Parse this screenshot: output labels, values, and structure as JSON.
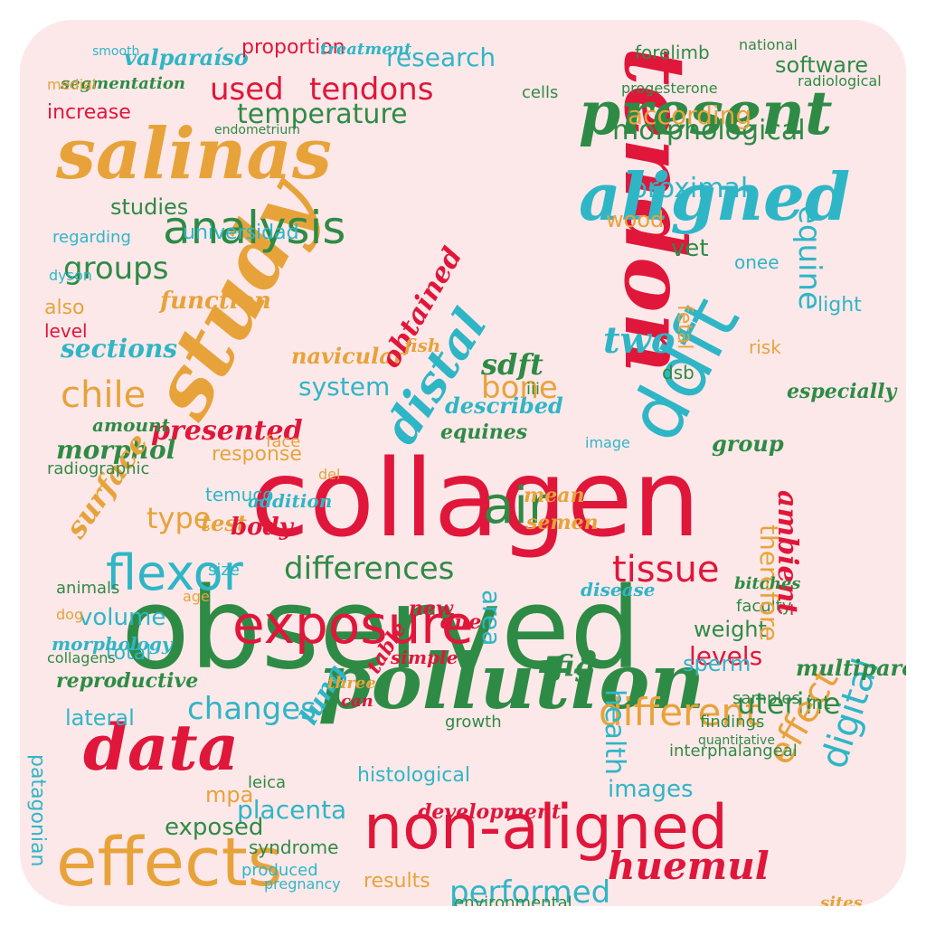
{
  "palette": {
    "background": "#fde8e9",
    "red": "#e0163a",
    "green": "#2e8b45",
    "orange": "#e7a33a",
    "cyan": "#2fb6c6"
  },
  "words": [
    {
      "text": "collagen",
      "color": "red",
      "font": "s",
      "dir": "h"
    },
    {
      "text": "observed",
      "color": "green",
      "font": "s",
      "dir": "h"
    },
    {
      "text": "tendon",
      "color": "red",
      "font": "c",
      "dir": "v"
    },
    {
      "text": "study",
      "color": "orange",
      "font": "c",
      "dir": "d"
    },
    {
      "text": "pollution",
      "color": "green",
      "font": "c",
      "dir": "h"
    },
    {
      "text": "non-aligned",
      "color": "red",
      "font": "s",
      "dir": "h"
    },
    {
      "text": "effects",
      "color": "orange",
      "font": "s",
      "dir": "h"
    },
    {
      "text": "salinas",
      "color": "orange",
      "font": "c",
      "dir": "h"
    },
    {
      "text": "present",
      "color": "green",
      "font": "c",
      "dir": "h"
    },
    {
      "text": "aligned",
      "color": "cyan",
      "font": "c",
      "dir": "h"
    },
    {
      "text": "ddft",
      "color": "cyan",
      "font": "s",
      "dir": "d"
    },
    {
      "text": "data",
      "color": "red",
      "font": "c",
      "dir": "h"
    },
    {
      "text": "distal",
      "color": "cyan",
      "font": "c",
      "dir": "d"
    },
    {
      "text": "exposure",
      "color": "red",
      "font": "s",
      "dir": "h"
    },
    {
      "text": "flexor",
      "color": "cyan",
      "font": "s",
      "dir": "h"
    },
    {
      "text": "tissue",
      "color": "red",
      "font": "s",
      "dir": "h"
    },
    {
      "text": "equine",
      "color": "cyan",
      "font": "s",
      "dir": "v"
    },
    {
      "text": "huemul",
      "color": "red",
      "font": "c",
      "dir": "h"
    },
    {
      "text": "digital",
      "color": "cyan",
      "font": "s",
      "dir": "v"
    },
    {
      "text": "different",
      "color": "orange",
      "font": "s",
      "dir": "h"
    },
    {
      "text": "analysis",
      "color": "green",
      "font": "s",
      "dir": "h"
    },
    {
      "text": "used",
      "color": "red",
      "font": "s",
      "dir": "h"
    },
    {
      "text": "tendons",
      "color": "red",
      "font": "s",
      "dir": "h"
    },
    {
      "text": "temperature",
      "color": "green",
      "font": "s",
      "dir": "h"
    },
    {
      "text": "morphological",
      "color": "green",
      "font": "s",
      "dir": "h"
    },
    {
      "text": "proximal",
      "color": "cyan",
      "font": "s",
      "dir": "h"
    },
    {
      "text": "studies",
      "color": "green",
      "font": "s",
      "dir": "h"
    },
    {
      "text": "universidad",
      "color": "cyan",
      "font": "s",
      "dir": "h"
    },
    {
      "text": "groups",
      "color": "green",
      "font": "s",
      "dir": "h"
    },
    {
      "text": "function",
      "color": "orange",
      "font": "c",
      "dir": "h"
    },
    {
      "text": "chile",
      "color": "orange",
      "font": "s",
      "dir": "h"
    },
    {
      "text": "presented",
      "color": "red",
      "font": "c",
      "dir": "h"
    },
    {
      "text": "described",
      "color": "cyan",
      "font": "c",
      "dir": "h"
    },
    {
      "text": "differences",
      "color": "green",
      "font": "s",
      "dir": "h"
    },
    {
      "text": "changes",
      "color": "cyan",
      "font": "s",
      "dir": "h"
    },
    {
      "text": "performed",
      "color": "cyan",
      "font": "s",
      "dir": "h"
    },
    {
      "text": "health",
      "color": "cyan",
      "font": "s",
      "dir": "v"
    },
    {
      "text": "air",
      "color": "green",
      "font": "s",
      "dir": "h"
    },
    {
      "text": "two",
      "color": "cyan",
      "font": "c",
      "dir": "h"
    },
    {
      "text": "sdft",
      "color": "green",
      "font": "c",
      "dir": "h"
    },
    {
      "text": "bone",
      "color": "orange",
      "font": "s",
      "dir": "h"
    },
    {
      "text": "system",
      "color": "cyan",
      "font": "s",
      "dir": "h"
    },
    {
      "text": "equines",
      "color": "green",
      "font": "c",
      "dir": "h"
    },
    {
      "text": "navicular",
      "color": "orange",
      "font": "c",
      "dir": "h"
    },
    {
      "text": "obtained",
      "color": "red",
      "font": "c",
      "dir": "d"
    },
    {
      "text": "uterine",
      "color": "green",
      "font": "s",
      "dir": "h"
    },
    {
      "text": "effect",
      "color": "orange",
      "font": "s",
      "dir": "d"
    },
    {
      "text": "placenta",
      "color": "cyan",
      "font": "s",
      "dir": "h"
    },
    {
      "text": "exposed",
      "color": "green",
      "font": "s",
      "dir": "h"
    },
    {
      "text": "images",
      "color": "cyan",
      "font": "s",
      "dir": "h"
    },
    {
      "text": "histological",
      "color": "cyan",
      "font": "s",
      "dir": "h"
    },
    {
      "text": "development",
      "color": "red",
      "font": "c",
      "dir": "h"
    },
    {
      "text": "results",
      "color": "orange",
      "font": "s",
      "dir": "h"
    },
    {
      "text": "environmental",
      "color": "green",
      "font": "s",
      "dir": "h"
    },
    {
      "text": "research",
      "color": "cyan",
      "font": "s",
      "dir": "h"
    },
    {
      "text": "according",
      "color": "orange",
      "font": "s",
      "dir": "h"
    },
    {
      "text": "software",
      "color": "green",
      "font": "s",
      "dir": "h"
    },
    {
      "text": "valparaíso",
      "color": "cyan",
      "font": "c",
      "dir": "h"
    },
    {
      "text": "proportion",
      "color": "red",
      "font": "s",
      "dir": "h"
    },
    {
      "text": "treatment",
      "color": "cyan",
      "font": "c",
      "dir": "h"
    },
    {
      "text": "segmentation",
      "color": "green",
      "font": "c",
      "dir": "h"
    },
    {
      "text": "increase",
      "color": "red",
      "font": "s",
      "dir": "h"
    },
    {
      "text": "forelimb",
      "color": "green",
      "font": "s",
      "dir": "h"
    },
    {
      "text": "radiological",
      "color": "green",
      "font": "s",
      "dir": "h"
    },
    {
      "text": "national",
      "color": "green",
      "font": "s",
      "dir": "h"
    },
    {
      "text": "endometrium",
      "color": "green",
      "font": "s",
      "dir": "h"
    },
    {
      "text": "cells",
      "color": "green",
      "font": "s",
      "dir": "h"
    },
    {
      "text": "progesterone",
      "color": "green",
      "font": "s",
      "dir": "h"
    },
    {
      "text": "wood",
      "color": "orange",
      "font": "s",
      "dir": "h"
    },
    {
      "text": "vet",
      "color": "green",
      "font": "s",
      "dir": "h"
    },
    {
      "text": "sections",
      "color": "cyan",
      "font": "c",
      "dir": "h"
    },
    {
      "text": "level",
      "color": "red",
      "font": "s",
      "dir": "h"
    },
    {
      "text": "also",
      "color": "orange",
      "font": "s",
      "dir": "h"
    },
    {
      "text": "morphol",
      "color": "green",
      "font": "c",
      "dir": "h"
    },
    {
      "text": "surface",
      "color": "orange",
      "font": "c",
      "dir": "d"
    },
    {
      "text": "temuco",
      "color": "cyan",
      "font": "s",
      "dir": "h"
    },
    {
      "text": "type",
      "color": "orange",
      "font": "s",
      "dir": "h"
    },
    {
      "text": "lateral",
      "color": "cyan",
      "font": "s",
      "dir": "h"
    },
    {
      "text": "lung",
      "color": "cyan",
      "font": "c",
      "dir": "d"
    },
    {
      "text": "mpa",
      "color": "orange",
      "font": "s",
      "dir": "h"
    },
    {
      "text": "weight",
      "color": "green",
      "font": "s",
      "dir": "h"
    },
    {
      "text": "levels",
      "color": "red",
      "font": "s",
      "dir": "h"
    },
    {
      "text": "multiparous",
      "color": "green",
      "font": "c",
      "dir": "h"
    },
    {
      "text": "samples",
      "color": "green",
      "font": "s",
      "dir": "h"
    },
    {
      "text": "faculty",
      "color": "green",
      "font": "s",
      "dir": "h"
    },
    {
      "text": "therefore",
      "color": "orange",
      "font": "s",
      "dir": "v"
    },
    {
      "text": "ambient",
      "color": "red",
      "font": "c",
      "dir": "v"
    },
    {
      "text": "semen",
      "color": "orange",
      "font": "c",
      "dir": "h"
    },
    {
      "text": "mean",
      "color": "orange",
      "font": "c",
      "dir": "h"
    },
    {
      "text": "sperm",
      "color": "cyan",
      "font": "s",
      "dir": "h"
    },
    {
      "text": "group",
      "color": "green",
      "font": "c",
      "dir": "h"
    },
    {
      "text": "test",
      "color": "orange",
      "font": "c",
      "dir": "h"
    },
    {
      "text": "volume",
      "color": "cyan",
      "font": "s",
      "dir": "h"
    },
    {
      "text": "total",
      "color": "cyan",
      "font": "s",
      "dir": "h"
    },
    {
      "text": "reproductive",
      "color": "green",
      "font": "c",
      "dir": "h"
    },
    {
      "text": "collagens",
      "color": "green",
      "font": "s",
      "dir": "h"
    },
    {
      "text": "morphology",
      "color": "cyan",
      "font": "c",
      "dir": "h"
    },
    {
      "text": "animals",
      "color": "green",
      "font": "s",
      "dir": "h"
    },
    {
      "text": "dog",
      "color": "orange",
      "font": "s",
      "dir": "h"
    },
    {
      "text": "radiographic",
      "color": "green",
      "font": "s",
      "dir": "h"
    },
    {
      "text": "amount",
      "color": "green",
      "font": "c",
      "dir": "h"
    },
    {
      "text": "regarding",
      "color": "cyan",
      "font": "s",
      "dir": "h"
    },
    {
      "text": "dyson",
      "color": "cyan",
      "font": "s",
      "dir": "h"
    },
    {
      "text": "medial",
      "color": "orange",
      "font": "s",
      "dir": "h"
    },
    {
      "text": "smooth",
      "color": "cyan",
      "font": "s",
      "dir": "h"
    },
    {
      "text": "fish",
      "color": "orange",
      "font": "c",
      "dir": "h"
    },
    {
      "text": "body",
      "color": "red",
      "font": "c",
      "dir": "h"
    },
    {
      "text": "addition",
      "color": "cyan",
      "font": "c",
      "dir": "h"
    },
    {
      "text": "response",
      "color": "orange",
      "font": "s",
      "dir": "h"
    },
    {
      "text": "size",
      "color": "cyan",
      "font": "s",
      "dir": "h"
    },
    {
      "text": "age",
      "color": "orange",
      "font": "s",
      "dir": "h"
    },
    {
      "text": "del",
      "color": "orange",
      "font": "s",
      "dir": "h"
    },
    {
      "text": "face",
      "color": "orange",
      "font": "s",
      "dir": "h"
    },
    {
      "text": "iii",
      "color": "green",
      "font": "s",
      "dir": "h"
    },
    {
      "text": "dsb",
      "color": "green",
      "font": "s",
      "dir": "h"
    },
    {
      "text": "fetal",
      "color": "orange",
      "font": "s",
      "dir": "v"
    },
    {
      "text": "light",
      "color": "cyan",
      "font": "s",
      "dir": "h"
    },
    {
      "text": "onee",
      "color": "cyan",
      "font": "s",
      "dir": "h"
    },
    {
      "text": "risk",
      "color": "orange",
      "font": "s",
      "dir": "h"
    },
    {
      "text": "image",
      "color": "cyan",
      "font": "s",
      "dir": "h"
    },
    {
      "text": "especially",
      "color": "green",
      "font": "c",
      "dir": "h"
    },
    {
      "text": "int",
      "color": "green",
      "font": "s",
      "dir": "h"
    },
    {
      "text": "findings",
      "color": "green",
      "font": "s",
      "dir": "h"
    },
    {
      "text": "quantitative",
      "color": "green",
      "font": "s",
      "dir": "h"
    },
    {
      "text": "interphalangeal",
      "color": "green",
      "font": "s",
      "dir": "h"
    },
    {
      "text": "growth",
      "color": "green",
      "font": "s",
      "dir": "h"
    },
    {
      "text": "leica",
      "color": "green",
      "font": "s",
      "dir": "h"
    },
    {
      "text": "patagonian",
      "color": "cyan",
      "font": "s",
      "dir": "v"
    },
    {
      "text": "three",
      "color": "orange",
      "font": "c",
      "dir": "h"
    },
    {
      "text": "can",
      "color": "red",
      "font": "c",
      "dir": "h"
    },
    {
      "text": "simple",
      "color": "red",
      "font": "c",
      "dir": "h"
    },
    {
      "text": "table",
      "color": "red",
      "font": "c",
      "dir": "d"
    },
    {
      "text": "fig",
      "color": "green",
      "font": "c",
      "dir": "h"
    },
    {
      "text": "area",
      "color": "cyan",
      "font": "s",
      "dir": "v"
    },
    {
      "text": "disease",
      "color": "cyan",
      "font": "c",
      "dir": "h"
    },
    {
      "text": "new",
      "color": "red",
      "font": "c",
      "dir": "h"
    },
    {
      "text": "due",
      "color": "red",
      "font": "c",
      "dir": "h"
    },
    {
      "text": "bitches",
      "color": "green",
      "font": "c",
      "dir": "h"
    },
    {
      "text": "syndrome",
      "color": "green",
      "font": "s",
      "dir": "h"
    },
    {
      "text": "produced",
      "color": "cyan",
      "font": "s",
      "dir": "h"
    },
    {
      "text": "pregnancy",
      "color": "cyan",
      "font": "s",
      "dir": "h"
    },
    {
      "text": "sites",
      "color": "orange",
      "font": "c",
      "dir": "h"
    }
  ]
}
